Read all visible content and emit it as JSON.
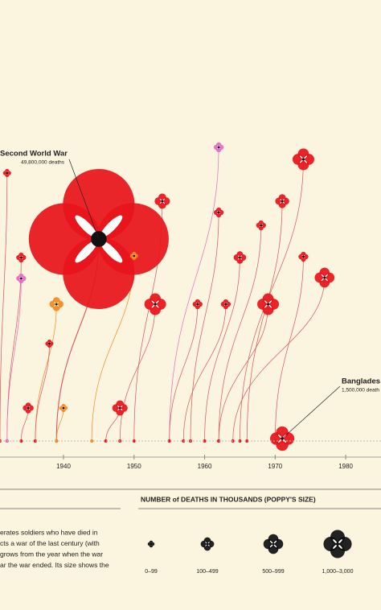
{
  "chart_data": {
    "type": "poppy",
    "xlim": [
      1931,
      1985
    ],
    "xticks": [
      1940,
      1950,
      1960,
      1970,
      1980
    ],
    "annotations": [
      {
        "title": "Second World War",
        "subtitle": "49,800,000 deaths"
      },
      {
        "title": "Banglades",
        "subtitle": "1,500,000 death"
      }
    ],
    "legend_title": "NUMBER of DEATHS IN THOUSANDS (POPPY'S SIZE)",
    "legend_items": [
      "0–99",
      "100–499",
      "500–999",
      "1,000–3,000"
    ],
    "description": [
      "erates soldiers who have died in",
      "cts a war of the last century (with",
      "grows from the year when the war",
      "ar the war ended. Its size shows the"
    ],
    "colors": {
      "red": "#e8141c",
      "orange": "#f28a1e",
      "pink": "#e36ac4"
    },
    "poppies": [
      {
        "start": 1939,
        "end": 1945,
        "deaths": 49800,
        "color": "red"
      },
      {
        "start": 1971,
        "end": 1971,
        "deaths": 1500,
        "color": "red"
      },
      {
        "start": 1931,
        "end": 1932,
        "deaths": 60,
        "color": "red"
      },
      {
        "start": 1932,
        "end": 1934,
        "deaths": 250,
        "color": "red"
      },
      {
        "start": 1932,
        "end": 1934,
        "deaths": 250,
        "color": "pink"
      },
      {
        "start": 1936,
        "end": 1939,
        "deaths": 500,
        "color": "orange"
      },
      {
        "start": 1934,
        "end": 1935,
        "deaths": 300,
        "color": "red"
      },
      {
        "start": 1936,
        "end": 1938,
        "deaths": 60,
        "color": "red"
      },
      {
        "start": 1946,
        "end": 1948,
        "deaths": 600,
        "color": "red"
      },
      {
        "start": 1950,
        "end": 1954,
        "deaths": 600,
        "color": "red"
      },
      {
        "start": 1948,
        "end": 1953,
        "deaths": 1200,
        "color": "red"
      },
      {
        "start": 1955,
        "end": 1962,
        "deaths": 250,
        "color": "pink"
      },
      {
        "start": 1958,
        "end": 1962,
        "deaths": 250,
        "color": "red"
      },
      {
        "start": 1960,
        "end": 1965,
        "deaths": 400,
        "color": "red"
      },
      {
        "start": 1962,
        "end": 1968,
        "deaths": 250,
        "color": "red"
      },
      {
        "start": 1962,
        "end": 1969,
        "deaths": 1200,
        "color": "red"
      },
      {
        "start": 1965,
        "end": 1974,
        "deaths": 1200,
        "color": "red"
      },
      {
        "start": 1966,
        "end": 1971,
        "deaths": 500,
        "color": "red"
      },
      {
        "start": 1970,
        "end": 1974,
        "deaths": 250,
        "color": "red"
      },
      {
        "start": 1964,
        "end": 1977,
        "deaths": 1000,
        "color": "red"
      },
      {
        "start": 1955,
        "end": 1959,
        "deaths": 250,
        "color": "red"
      },
      {
        "start": 1957,
        "end": 1963,
        "deaths": 250,
        "color": "red"
      },
      {
        "start": 1939,
        "end": 1940,
        "deaths": 60,
        "color": "orange"
      },
      {
        "start": 1944,
        "end": 1950,
        "deaths": 60,
        "color": "orange"
      }
    ]
  }
}
